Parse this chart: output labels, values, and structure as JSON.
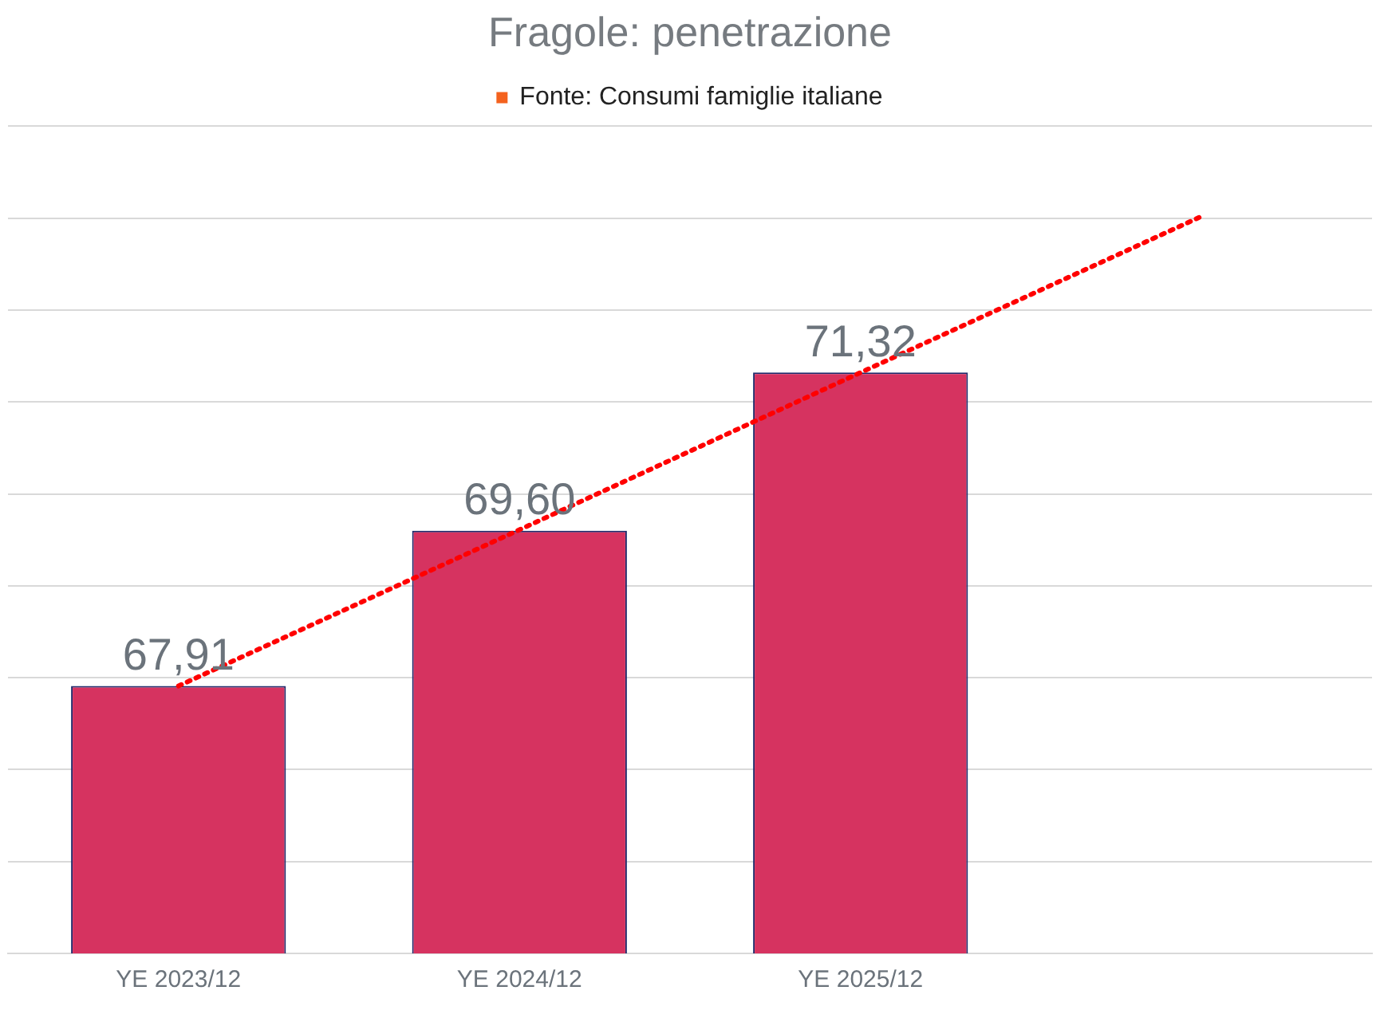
{
  "chart_data": {
    "type": "bar",
    "title": "Fragole: penetrazione",
    "categories": [
      "YE 2023/12",
      "YE 2024/12",
      "YE 2025/12",
      null
    ],
    "series": [
      {
        "color": "#d63360",
        "values": [
          67.91,
          69.6,
          71.32,
          null
        ],
        "value_labels": [
          "67,91",
          "69,60",
          "71,32",
          null
        ]
      },
      {
        "type": "line",
        "color": "#ff0000",
        "line_style": "dotted",
        "marker": "none",
        "values": [
          67.91,
          69.61,
          71.32,
          73.02
        ]
      },
      {
        "type": "scatter",
        "name": "Fonte: Consumi famiglie italiane",
        "color": "#f4621e",
        "marker": "square",
        "values": [
          null,
          null,
          null,
          null
        ]
      }
    ],
    "ylim": [
      65,
      74
    ],
    "yticks": [
      {
        "value": 65,
        "label": null
      },
      {
        "value": 66,
        "label": null
      },
      {
        "value": 67,
        "label": null
      },
      {
        "value": 68,
        "label": null
      },
      {
        "value": 69,
        "label": null
      },
      {
        "value": 70,
        "label": null
      },
      {
        "value": 71,
        "label": null
      },
      {
        "value": 72,
        "label": null
      },
      {
        "value": 73,
        "label": null
      },
      {
        "value": 74,
        "label": null
      }
    ],
    "grid": "y",
    "legend": "top",
    "tick_labels": "x"
  }
}
